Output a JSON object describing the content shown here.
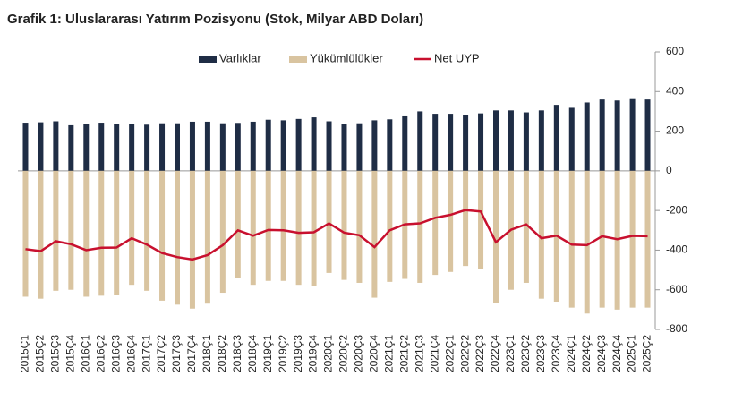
{
  "chart_data": {
    "type": "bar_line",
    "title": "Grafik 1: Uluslararası Yatırım Pozisyonu (Stok, Milyar ABD Doları)",
    "categories": [
      "2015Ç1",
      "2015Ç2",
      "2015Ç3",
      "2015Ç4",
      "2016Ç1",
      "2016Ç2",
      "2016Ç3",
      "2016Ç4",
      "2017Ç1",
      "2017Ç2",
      "2017Ç3",
      "2017Ç4",
      "2018Ç1",
      "2018Ç2",
      "2018Ç3",
      "2018Ç4",
      "2019Ç1",
      "2019Ç2",
      "2019Ç3",
      "2019Ç4",
      "2020Ç1",
      "2020Ç2",
      "2020Ç3",
      "2020Ç4",
      "2021Ç1",
      "2021Ç2",
      "2021Ç3",
      "2021Ç4",
      "2022Ç1",
      "2022Ç2",
      "2022Ç3",
      "2022Ç4",
      "2023Ç1",
      "2023Ç2",
      "2023Ç3",
      "2023Ç4",
      "2024Ç1",
      "2024Ç2",
      "2024Ç3",
      "2024Ç4",
      "2025Ç1",
      "2025Ç2"
    ],
    "series": [
      {
        "name": "Varlıklar",
        "type": "bar",
        "color": "#1f2d45",
        "values": [
          243,
          245,
          250,
          230,
          237,
          243,
          237,
          235,
          233,
          240,
          240,
          248,
          248,
          240,
          242,
          248,
          258,
          255,
          262,
          270,
          250,
          238,
          240,
          255,
          260,
          275,
          300,
          288,
          288,
          282,
          290,
          305,
          305,
          295,
          305,
          333,
          318,
          345,
          360,
          355,
          362,
          360
        ]
      },
      {
        "name": "Yükümlülükler",
        "type": "bar",
        "color": "#d9c4a0",
        "values": [
          -635,
          -645,
          -605,
          -600,
          -635,
          -630,
          -625,
          -575,
          -605,
          -655,
          -675,
          -695,
          -670,
          -615,
          -540,
          -575,
          -555,
          -555,
          -575,
          -580,
          -515,
          -550,
          -565,
          -640,
          -560,
          -545,
          -565,
          -525,
          -510,
          -480,
          -495,
          -665,
          -600,
          -565,
          -645,
          -660,
          -690,
          -720,
          -690,
          -700,
          -690,
          -690
        ]
      },
      {
        "name": "Net UYP",
        "type": "line",
        "color": "#c8102e",
        "values": [
          -395,
          -405,
          -355,
          -370,
          -400,
          -388,
          -387,
          -340,
          -372,
          -415,
          -435,
          -447,
          -425,
          -375,
          -300,
          -327,
          -298,
          -300,
          -313,
          -310,
          -265,
          -312,
          -325,
          -385,
          -300,
          -270,
          -265,
          -237,
          -222,
          -198,
          -205,
          -360,
          -297,
          -270,
          -340,
          -327,
          -372,
          -375,
          -330,
          -345,
          -328,
          -330
        ]
      }
    ],
    "ylim": [
      -800,
      600
    ],
    "yticks": [
      600,
      400,
      200,
      0,
      -200,
      -400,
      -600,
      -800
    ],
    "legend": "top"
  }
}
